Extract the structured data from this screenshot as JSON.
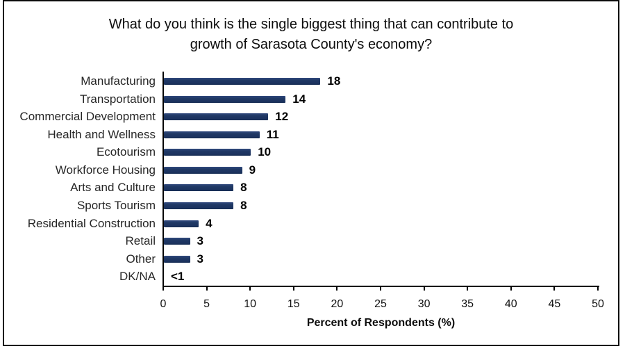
{
  "figure": {
    "title": "What do you think is the single biggest thing that can contribute to\ngrowth of Sarasota County's economy?"
  },
  "chart_data": {
    "type": "bar",
    "orientation": "horizontal",
    "title": "What do you think is the single biggest thing that can contribute to growth of Sarasota County's economy?",
    "categories": [
      "Manufacturing",
      "Transportation",
      "Commercial Development",
      "Health and Wellness",
      "Ecotourism",
      "Workforce Housing",
      "Arts and Culture",
      "Sports Tourism",
      "Residential Construction",
      "Retail",
      "Other",
      "DK/NA"
    ],
    "values": [
      18,
      14,
      12,
      11,
      10,
      9,
      8,
      8,
      4,
      3,
      3,
      0.5
    ],
    "display_values": [
      "18",
      "14",
      "12",
      "11",
      "10",
      "9",
      "8",
      "8",
      "4",
      "3",
      "3",
      "<1"
    ],
    "xlabel": "Percent of Respondents (%)",
    "ylabel": "",
    "x_ticks": [
      0,
      5,
      10,
      15,
      20,
      25,
      30,
      35,
      40,
      45,
      50
    ],
    "xlim": [
      0,
      50
    ],
    "bar_color": "#1F3864",
    "text_color": "#0d0d0d",
    "grid": false,
    "legend": false
  }
}
